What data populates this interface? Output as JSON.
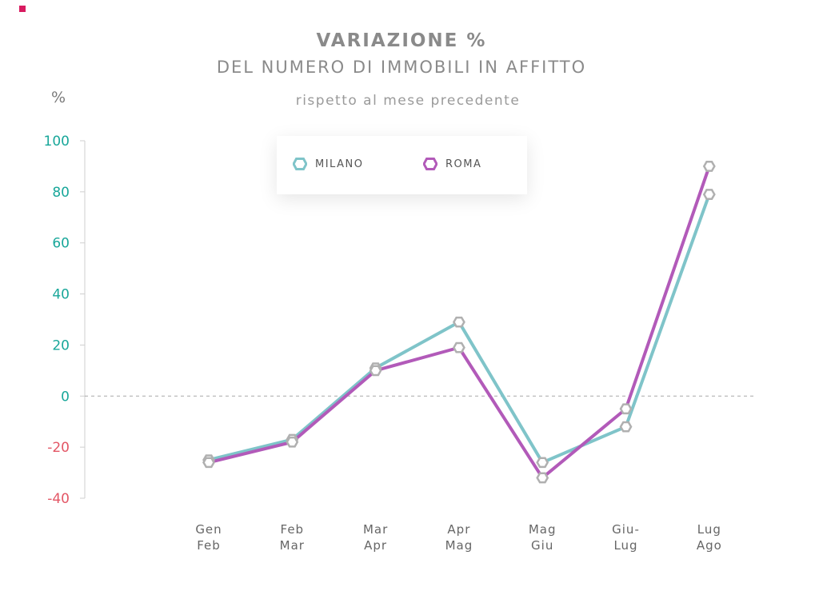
{
  "chart_data": {
    "type": "line",
    "title": "VARIAZIONE %",
    "title_line2": "DEL NUMERO DI IMMOBILI IN AFFITTO",
    "subtitle": "rispetto al mese precedente",
    "ylabel": "%",
    "ylim": [
      -40,
      100
    ],
    "yticks": [
      "100",
      "80",
      "60",
      "40",
      "20",
      "0",
      "-20",
      "-40"
    ],
    "categories": [
      [
        "Gen",
        "Feb"
      ],
      [
        "Feb",
        "Mar"
      ],
      [
        "Mar",
        "Apr"
      ],
      [
        "Apr",
        "Mag"
      ],
      [
        "Mag",
        "Giu"
      ],
      [
        "Giu-",
        "Lug"
      ],
      [
        "Lug",
        "Ago"
      ]
    ],
    "series": [
      {
        "name": "MILANO",
        "color": "#7fc4c9",
        "values": [
          -25,
          -17,
          11,
          29,
          -26,
          -12,
          79
        ]
      },
      {
        "name": "ROMA",
        "color": "#b25ab9",
        "values": [
          -26,
          -18,
          10,
          19,
          -32,
          -5,
          90
        ]
      }
    ],
    "legend_position": "top-center",
    "zero_line": "dashed",
    "colors": {
      "positive_ticks": "#19a79a",
      "negative_ticks": "#e35766",
      "marker_stroke": "#b0b0b0"
    }
  }
}
